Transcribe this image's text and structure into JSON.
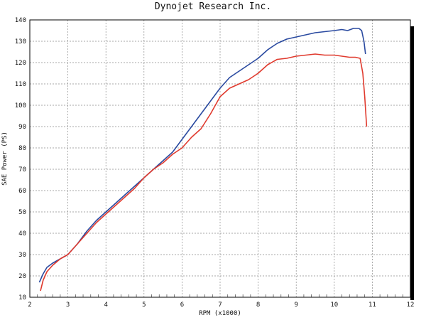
{
  "chart_data": {
    "type": "line",
    "title": "Dynojet  Research  Inc.",
    "xlabel": "RPM (x1000)",
    "ylabel": "SAE Power (PS)",
    "xlim": [
      2,
      12
    ],
    "ylim": [
      10,
      140
    ],
    "x_ticks": [
      "2",
      "3",
      "4",
      "5",
      "6",
      "7",
      "8",
      "9",
      "10",
      "11",
      "12"
    ],
    "y_ticks": [
      "10",
      "20",
      "30",
      "40",
      "50",
      "60",
      "70",
      "80",
      "90",
      "100",
      "110",
      "120",
      "130",
      "140"
    ],
    "grid": true,
    "colors": {
      "series_1": "#2a4aa0",
      "series_2": "#e03a2e"
    },
    "series": [
      {
        "x": [
          2.25,
          2.35,
          2.45,
          2.6,
          2.8,
          3.0,
          3.25,
          3.5,
          3.75,
          4.0,
          4.25,
          4.5,
          4.75,
          5.0,
          5.25,
          5.5,
          5.75,
          6.0,
          6.25,
          6.5,
          6.75,
          7.0,
          7.25,
          7.5,
          7.75,
          8.0,
          8.25,
          8.5,
          8.75,
          9.0,
          9.25,
          9.5,
          9.75,
          10.0,
          10.2,
          10.35,
          10.5,
          10.65,
          10.72,
          10.78,
          10.82
        ],
        "y": [
          17,
          21,
          24,
          26,
          28,
          30,
          35,
          41,
          46,
          50,
          54,
          58,
          62,
          66,
          70,
          74,
          78,
          84,
          90,
          96,
          102,
          108,
          113,
          116,
          119,
          122,
          126,
          129,
          131,
          132,
          133,
          134,
          134.5,
          135,
          135.5,
          135,
          136,
          136,
          135,
          130,
          124
        ]
      },
      {
        "x": [
          2.28,
          2.35,
          2.45,
          2.6,
          2.8,
          3.0,
          3.25,
          3.5,
          3.75,
          4.0,
          4.25,
          4.5,
          4.75,
          5.0,
          5.25,
          5.5,
          5.75,
          6.0,
          6.25,
          6.5,
          6.75,
          7.0,
          7.25,
          7.5,
          7.75,
          8.0,
          8.25,
          8.5,
          8.75,
          9.0,
          9.25,
          9.5,
          9.75,
          10.0,
          10.2,
          10.4,
          10.55,
          10.68,
          10.75,
          10.8,
          10.85
        ],
        "y": [
          13,
          18,
          22,
          25,
          28,
          30,
          35,
          40,
          45,
          49,
          53,
          57,
          61,
          66,
          70,
          73,
          77,
          80,
          85,
          89,
          96,
          104,
          108,
          110,
          112,
          115,
          119,
          121.5,
          122,
          123,
          123.5,
          124,
          123.5,
          123.5,
          123,
          122.5,
          122.5,
          122,
          115,
          104,
          90
        ]
      }
    ]
  }
}
